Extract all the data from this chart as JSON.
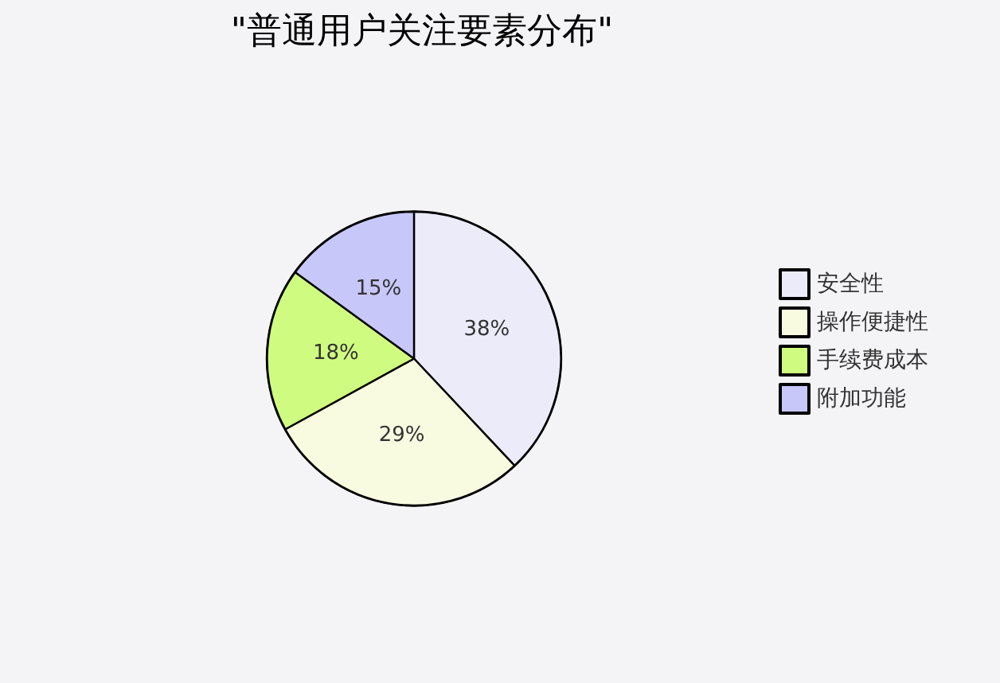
{
  "chart_data": {
    "type": "pie",
    "title": "\"普通用户关注要素分布\"",
    "categories": [
      "安全性",
      "操作便捷性",
      "手续费成本",
      "附加功能"
    ],
    "values": [
      38,
      29,
      18,
      15
    ],
    "value_labels": [
      "38%",
      "29%",
      "18%",
      "15%"
    ],
    "colors": [
      "#ecebfa",
      "#f8fbe0",
      "#cffc80",
      "#c8c7fa"
    ],
    "legend": "right"
  }
}
